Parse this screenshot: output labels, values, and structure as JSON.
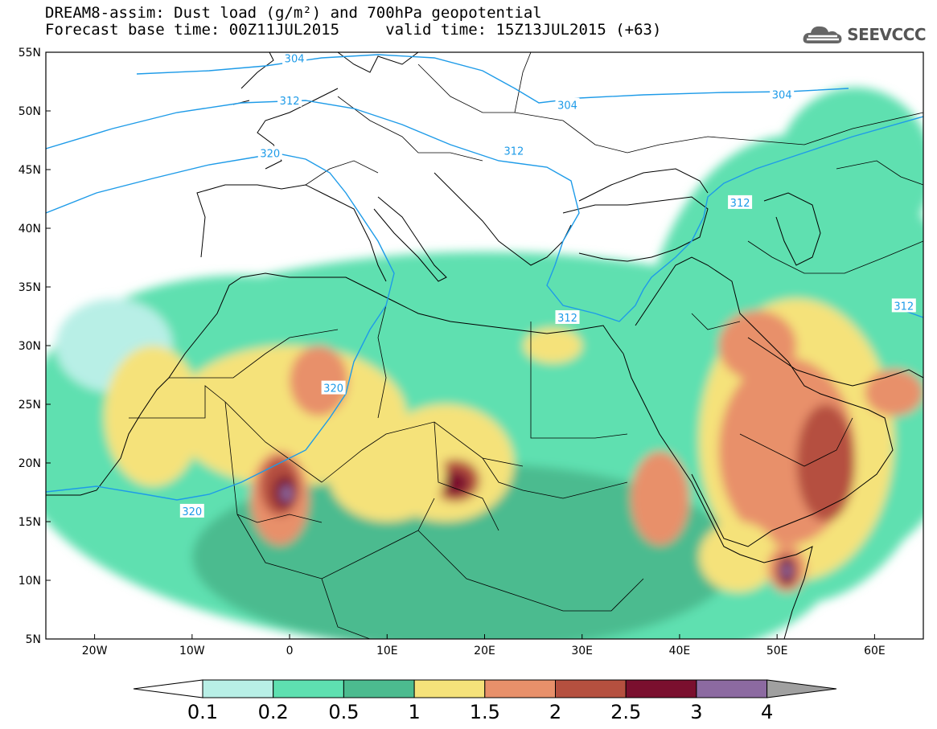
{
  "header": {
    "title_line1": "DREAM8-assim: Dust load (g/m²) and 700hPa geopotential",
    "title_line2": "Forecast base time: 00Z11JUL2015     valid time: 15Z13JUL2015 (+63)",
    "brand": "SEEVCCC",
    "brand_icon": "cloud-logo-icon"
  },
  "map": {
    "lon_range": [
      -25,
      65
    ],
    "lat_range": [
      5,
      55
    ],
    "lon_ticks": [
      "20W",
      "10W",
      "0",
      "10E",
      "20E",
      "30E",
      "40E",
      "50E",
      "60E"
    ],
    "lat_ticks": [
      "55N",
      "50N",
      "45N",
      "40N",
      "35N",
      "30N",
      "25N",
      "20N",
      "15N",
      "10N",
      "5N"
    ],
    "contour_labels": [
      {
        "text": "304",
        "lon": 0.5,
        "lat": 54.5
      },
      {
        "text": "304",
        "lon": 28.5,
        "lat": 50.5
      },
      {
        "text": "304",
        "lon": 50.5,
        "lat": 51.4
      },
      {
        "text": "312",
        "lon": 0.0,
        "lat": 50.9
      },
      {
        "text": "312",
        "lon": 23.0,
        "lat": 46.6
      },
      {
        "text": "312",
        "lon": 46.2,
        "lat": 42.2
      },
      {
        "text": "312",
        "lon": 28.5,
        "lat": 32.4
      },
      {
        "text": "312",
        "lon": 63.0,
        "lat": 33.4
      },
      {
        "text": "320",
        "lon": -2.0,
        "lat": 46.4
      },
      {
        "text": "320",
        "lon": 4.5,
        "lat": 26.4
      },
      {
        "text": "320",
        "lon": -10.0,
        "lat": 15.9
      }
    ],
    "colors": {
      "land_line": "#000000",
      "contour": "#1e9be8",
      "dust": [
        "#b8efe6",
        "#5ee0b0",
        "#4cbb8f",
        "#f5e27a",
        "#e8906a",
        "#b5503f",
        "#7a0f2e",
        "#8c6aa1",
        "#a0a0a0"
      ]
    }
  },
  "colorbar": {
    "labels": [
      "0.1",
      "0.2",
      "0.5",
      "1",
      "1.5",
      "2",
      "2.5",
      "3",
      "4"
    ],
    "colors": [
      "#b8efe6",
      "#5ee0b0",
      "#4cbb8f",
      "#f5e27a",
      "#e8906a",
      "#b5503f",
      "#7a0f2e",
      "#8c6aa1"
    ],
    "under_color": "#ffffff",
    "over_color": "#a0a0a0"
  }
}
